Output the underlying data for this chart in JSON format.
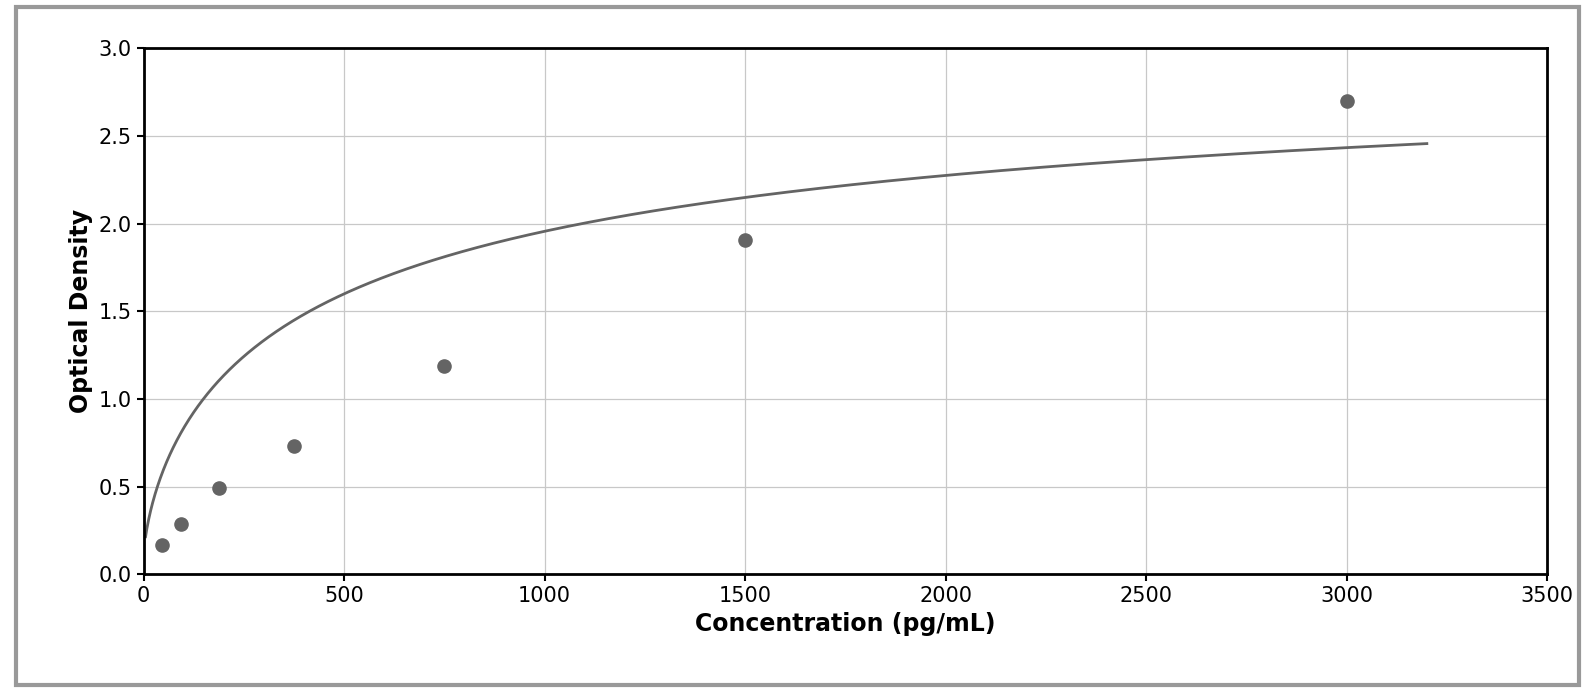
{
  "x_data": [
    46.875,
    93.75,
    187.5,
    375,
    750,
    1500,
    3000
  ],
  "y_data": [
    0.17,
    0.29,
    0.49,
    0.73,
    1.19,
    1.91,
    2.7
  ],
  "xlabel": "Concentration (pg/mL)",
  "ylabel": "Optical Density",
  "xlim": [
    0,
    3500
  ],
  "ylim": [
    0,
    3
  ],
  "xticks": [
    0,
    500,
    1000,
    1500,
    2000,
    2500,
    3000,
    3500
  ],
  "yticks": [
    0,
    0.5,
    1.0,
    1.5,
    2.0,
    2.5,
    3.0
  ],
  "point_color": "#646464",
  "line_color": "#646464",
  "background_color": "#ffffff",
  "grid_color": "#c8c8c8",
  "label_fontsize": 17,
  "tick_fontsize": 15,
  "figure_width": 15.95,
  "figure_height": 6.92,
  "dpi": 100,
  "outer_border_color": "#999999",
  "outer_border_lw": 3.0
}
